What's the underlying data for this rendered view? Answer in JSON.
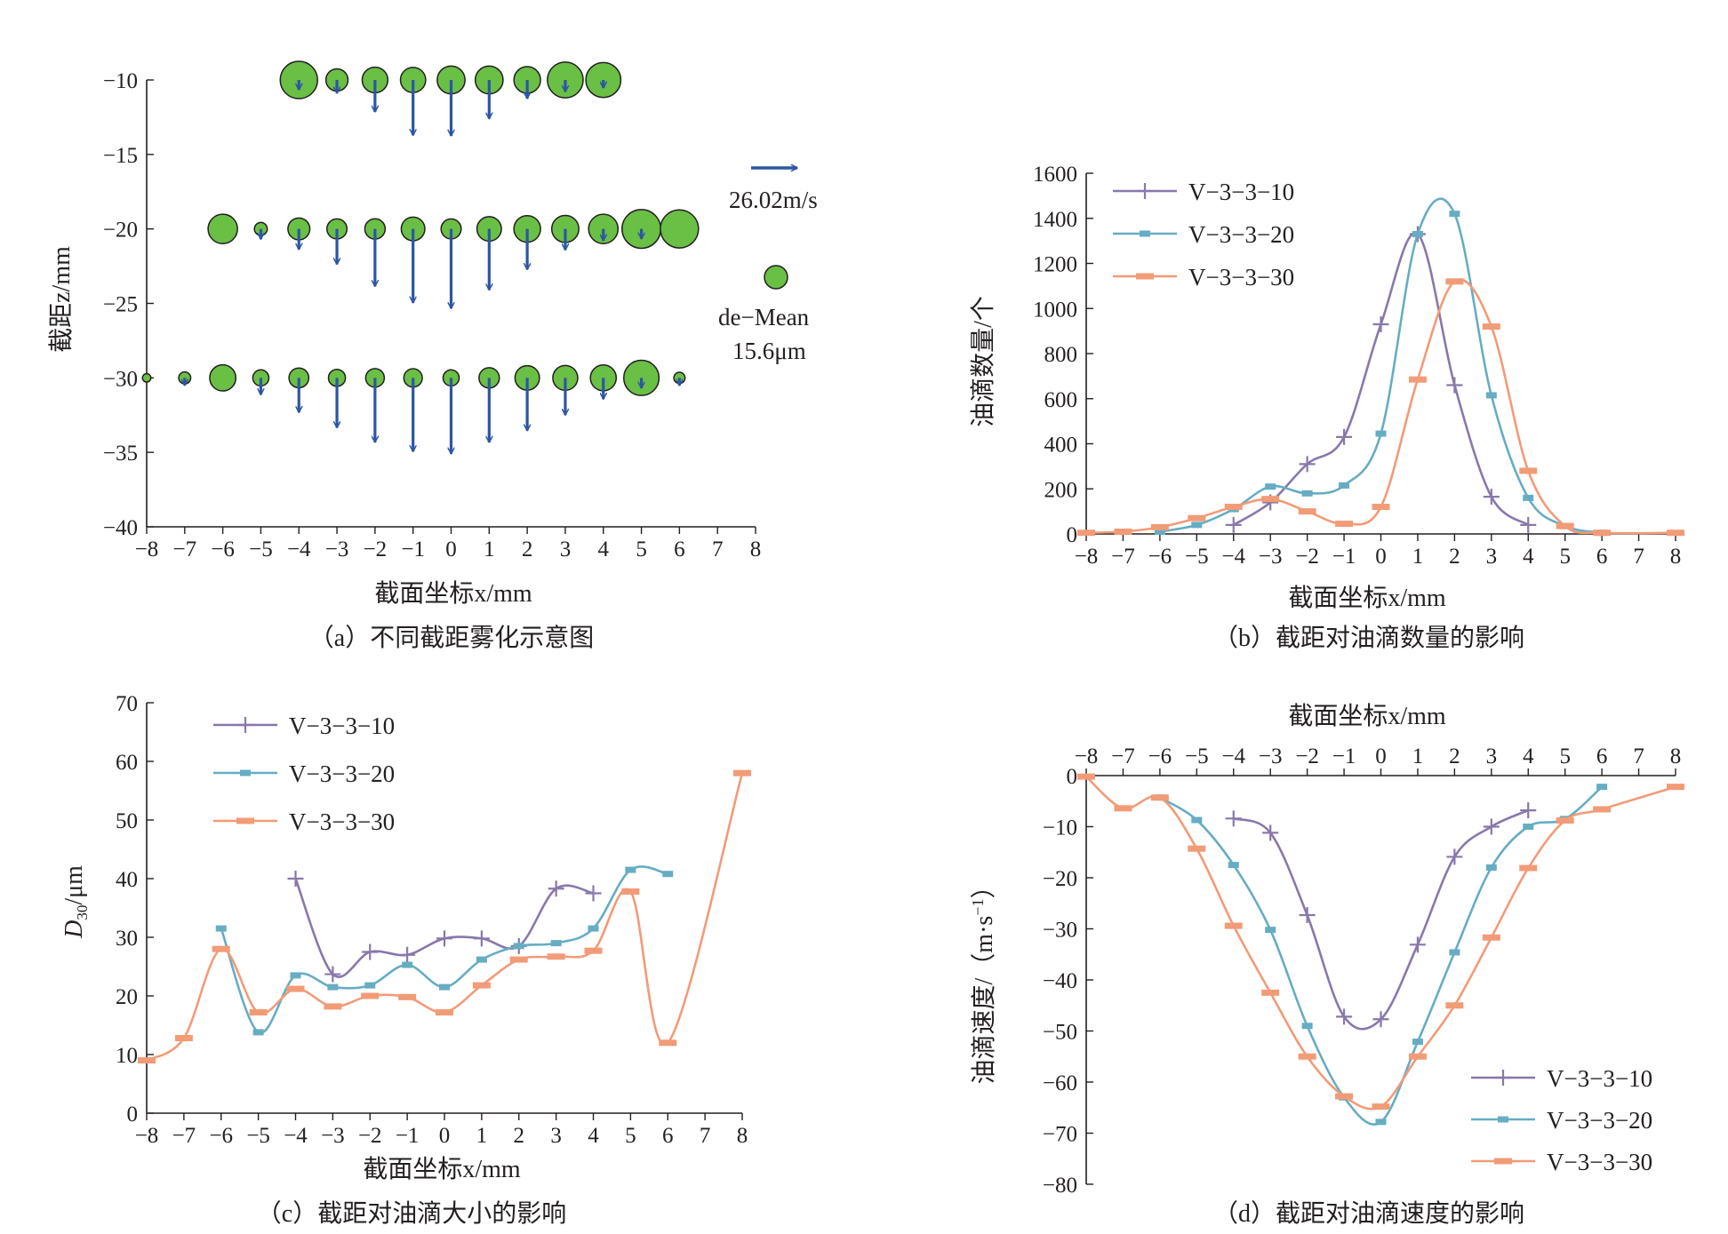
{
  "colors": {
    "series10": "#8878ab",
    "series20": "#66adc3",
    "series30": "#f29b77",
    "droplet_fill": "#6abf45",
    "arrow": "#2b56a5",
    "axis": "#231f20"
  },
  "chart_data": [
    {
      "id": "a",
      "type": "scatter",
      "caption": "（a）不同截距雾化示意图",
      "xlabel": "截面坐标x/mm",
      "ylabel": "截距z/mm",
      "xlim": [
        -8,
        8
      ],
      "ylim": [
        -40,
        -10
      ],
      "xticks": [
        "−8",
        "−7",
        "−6",
        "−5",
        "−4",
        "−3",
        "−2",
        "−1",
        "0",
        "1",
        "2",
        "3",
        "4",
        "5",
        "6",
        "7",
        "8"
      ],
      "yticks": [
        "−10",
        "−15",
        "−20",
        "−25",
        "−30",
        "−35",
        "−40"
      ],
      "legend": {
        "arrow_label": "26.02m/s",
        "arrow_speed": 26.02,
        "circle_label_1": "de−Mean",
        "circle_label_2": "15.6μm",
        "circle_diameter": 15.6
      },
      "marker_icon": "droplet-circle",
      "vector_icon": "velocity-arrow",
      "rows": [
        {
          "z": -10,
          "points": [
            {
              "x": -4,
              "d": 40.0,
              "v": -8.4
            },
            {
              "x": -3,
              "d": 23.7,
              "v": -11.2
            },
            {
              "x": -2,
              "d": 27.5,
              "v": -27.3
            },
            {
              "x": -1,
              "d": 27.0,
              "v": -47.2
            },
            {
              "x": 0,
              "d": 29.8,
              "v": -47.7
            },
            {
              "x": 1,
              "d": 29.8,
              "v": -33.1
            },
            {
              "x": 2,
              "d": 28.5,
              "v": -15.9
            },
            {
              "x": 3,
              "d": 38.3,
              "v": -10.0
            },
            {
              "x": 4,
              "d": 37.5,
              "v": -6.8
            }
          ]
        },
        {
          "z": -20,
          "points": [
            {
              "x": -6,
              "d": 31.5,
              "v": -4.3
            },
            {
              "x": -5,
              "d": 13.8,
              "v": -8.7
            },
            {
              "x": -4,
              "d": 23.5,
              "v": -17.5
            },
            {
              "x": -3,
              "d": 21.5,
              "v": -30.2
            },
            {
              "x": -2,
              "d": 21.8,
              "v": -49.0
            },
            {
              "x": -1,
              "d": 25.3,
              "v": -63.0
            },
            {
              "x": 0,
              "d": 21.5,
              "v": -67.8
            },
            {
              "x": 1,
              "d": 26.2,
              "v": -52.1
            },
            {
              "x": 2,
              "d": 28.5,
              "v": -34.6
            },
            {
              "x": 3,
              "d": 29.0,
              "v": -18.0
            },
            {
              "x": 4,
              "d": 31.5,
              "v": -10.0
            },
            {
              "x": 5,
              "d": 41.5,
              "v": -8.5
            },
            {
              "x": 6,
              "d": 40.8,
              "v": -2.2
            }
          ]
        },
        {
          "z": -30,
          "points": [
            {
              "x": -8,
              "d": 9.0,
              "v": -0.2
            },
            {
              "x": -7,
              "d": 12.8,
              "v": -6.4
            },
            {
              "x": -6,
              "d": 28.0,
              "v": -4.3
            },
            {
              "x": -5,
              "d": 17.2,
              "v": -14.3
            },
            {
              "x": -4,
              "d": 21.2,
              "v": -29.4
            },
            {
              "x": -3,
              "d": 18.2,
              "v": -42.5
            },
            {
              "x": -2,
              "d": 20.0,
              "v": -55.0
            },
            {
              "x": -1,
              "d": 19.8,
              "v": -62.8
            },
            {
              "x": 0,
              "d": 17.2,
              "v": -64.8
            },
            {
              "x": 1,
              "d": 21.8,
              "v": -55.0
            },
            {
              "x": 2,
              "d": 26.2,
              "v": -45.0
            },
            {
              "x": 3,
              "d": 26.7,
              "v": -31.7
            },
            {
              "x": 4,
              "d": 27.7,
              "v": -18.1
            },
            {
              "x": 5,
              "d": 37.8,
              "v": -8.8
            },
            {
              "x": 6,
              "d": 12.0,
              "v": -6.6
            }
          ]
        }
      ]
    },
    {
      "id": "b",
      "type": "line",
      "caption": "（b）截距对油滴数量的影响",
      "xlabel": "截面坐标x/mm",
      "ylabel": "油滴数量/个",
      "xlim": [
        -8,
        8
      ],
      "ylim": [
        0,
        1600
      ],
      "xticks": [
        "−8",
        "−7",
        "−6",
        "−5",
        "−4",
        "−3",
        "−2",
        "−1",
        "0",
        "1",
        "2",
        "3",
        "4",
        "5",
        "6",
        "7",
        "8"
      ],
      "yticks": [
        "0",
        "200",
        "400",
        "600",
        "800",
        "1000",
        "1200",
        "1400",
        "1600"
      ],
      "legend_position": "top-left",
      "series": [
        {
          "name": "V−3−3−10",
          "x": [
            -4,
            -3,
            -2,
            -1,
            0,
            1,
            2,
            3,
            4
          ],
          "y": [
            40,
            140,
            310,
            430,
            930,
            1330,
            660,
            165,
            40
          ]
        },
        {
          "name": "V−3−3−20",
          "x": [
            -6,
            -5,
            -4,
            -3,
            -2,
            -1,
            0,
            1,
            2,
            3,
            4,
            5,
            6
          ],
          "y": [
            10,
            40,
            110,
            210,
            180,
            215,
            445,
            1330,
            1420,
            615,
            160,
            35,
            5
          ]
        },
        {
          "name": "V−3−3−30",
          "x": [
            -8,
            -7,
            -6,
            -5,
            -4,
            -3,
            -2,
            -1,
            0,
            1,
            2,
            3,
            4,
            5,
            6,
            8
          ],
          "y": [
            5,
            10,
            30,
            70,
            120,
            155,
            100,
            45,
            120,
            685,
            1120,
            920,
            280,
            35,
            5,
            5
          ]
        }
      ]
    },
    {
      "id": "c",
      "type": "line",
      "caption": "（c）截距对油滴大小的影响",
      "xlabel": "截面坐标x/mm",
      "ylabel": "D30/μm",
      "xlim": [
        -8,
        8
      ],
      "ylim": [
        0,
        70
      ],
      "xticks": [
        "−8",
        "−7",
        "−6",
        "−5",
        "−4",
        "−3",
        "−2",
        "−1",
        "0",
        "1",
        "2",
        "3",
        "4",
        "5",
        "6",
        "7",
        "8"
      ],
      "yticks": [
        "0",
        "10",
        "20",
        "30",
        "40",
        "50",
        "60",
        "70"
      ],
      "legend_position": "top-left",
      "series": [
        {
          "name": "V−3−3−10",
          "x": [
            -4,
            -3,
            -2,
            -1,
            0,
            1,
            2,
            3,
            4
          ],
          "y": [
            40.0,
            23.7,
            27.5,
            27.0,
            29.8,
            29.8,
            28.5,
            38.3,
            37.5
          ]
        },
        {
          "name": "V−3−3−20",
          "x": [
            -6,
            -5,
            -4,
            -3,
            -2,
            -1,
            0,
            1,
            2,
            3,
            4,
            5,
            6
          ],
          "y": [
            31.5,
            13.8,
            23.5,
            21.5,
            21.8,
            25.3,
            21.5,
            26.2,
            28.5,
            29.0,
            31.5,
            41.5,
            40.8
          ]
        },
        {
          "name": "V−3−3−30",
          "x": [
            -8,
            -7,
            -6,
            -5,
            -4,
            -3,
            -2,
            -1,
            0,
            1,
            2,
            3,
            4,
            5,
            6,
            8
          ],
          "y": [
            9.0,
            12.8,
            28.0,
            17.2,
            21.2,
            18.2,
            20.0,
            19.8,
            17.2,
            21.8,
            26.2,
            26.7,
            27.7,
            37.8,
            12.0,
            58.0
          ]
        }
      ]
    },
    {
      "id": "d",
      "type": "line",
      "caption": "（d）截距对油滴速度的影响",
      "xlabel": "截面坐标x/mm",
      "ylabel": "油滴速度/（m·s−1）",
      "xlim": [
        -8,
        8
      ],
      "ylim": [
        -80,
        0
      ],
      "x_axis_position": "top",
      "xticks": [
        "−8",
        "−7",
        "−6",
        "−5",
        "−4",
        "−3",
        "−2",
        "−1",
        "0",
        "1",
        "2",
        "3",
        "4",
        "5",
        "6",
        "7",
        "8"
      ],
      "yticks": [
        "0",
        "−10",
        "−20",
        "−30",
        "−40",
        "−50",
        "−60",
        "−70",
        "−80"
      ],
      "legend_position": "bottom-right",
      "series": [
        {
          "name": "V−3−3−10",
          "x": [
            -4,
            -3,
            -2,
            -1,
            0,
            1,
            2,
            3,
            4
          ],
          "y": [
            -8.4,
            -11.2,
            -27.3,
            -47.2,
            -47.7,
            -33.1,
            -15.9,
            -10.0,
            -6.8
          ]
        },
        {
          "name": "V−3−3−20",
          "x": [
            -6,
            -5,
            -4,
            -3,
            -2,
            -1,
            0,
            1,
            2,
            3,
            4,
            5,
            6
          ],
          "y": [
            -4.3,
            -8.7,
            -17.5,
            -30.2,
            -49.0,
            -63.0,
            -67.8,
            -52.1,
            -34.6,
            -18.0,
            -10.0,
            -8.5,
            -2.2
          ]
        },
        {
          "name": "V−3−3−30",
          "x": [
            -8,
            -7,
            -6,
            -5,
            -4,
            -3,
            -2,
            -1,
            0,
            1,
            2,
            3,
            4,
            5,
            6,
            8
          ],
          "y": [
            -0.2,
            -6.4,
            -4.3,
            -14.3,
            -29.4,
            -42.5,
            -55.0,
            -62.8,
            -64.8,
            -55.0,
            -45.0,
            -31.7,
            -18.1,
            -8.8,
            -6.6,
            -2.2
          ]
        }
      ]
    }
  ]
}
